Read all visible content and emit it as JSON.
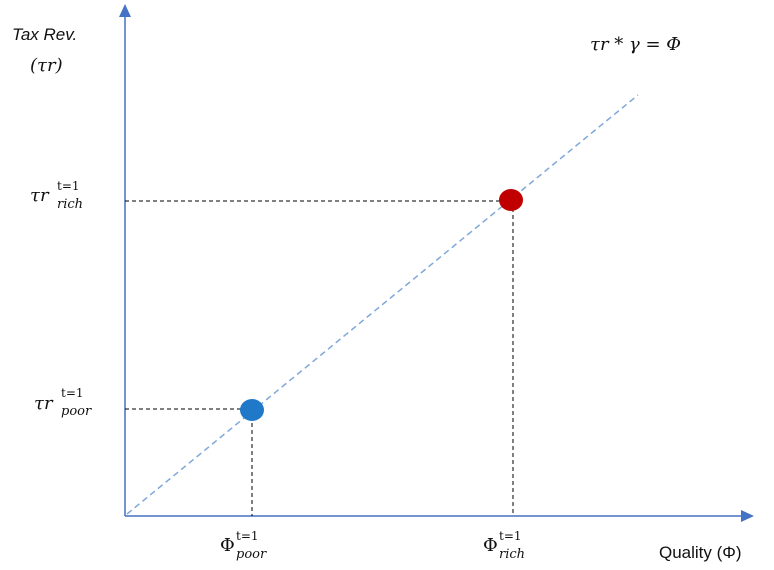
{
  "y_axis": {
    "title_line1": "Tax Rev.",
    "title_line2": "(τr)"
  },
  "x_axis": {
    "title": "Quality (Φ)"
  },
  "equation": "τr * γ = Φ",
  "ticks": {
    "tau_rich": {
      "base": "τr",
      "sup": "t=1",
      "sub": "rich"
    },
    "tau_poor": {
      "base": "τr",
      "sup": "t=1",
      "sub": "poor"
    },
    "phi_poor": {
      "base": "Φ",
      "sup": "t=1",
      "sub": "poor"
    },
    "phi_rich": {
      "base": "Φ",
      "sup": "t=1",
      "sub": "rich"
    }
  },
  "points": {
    "poor": {
      "color": "#1f78c8"
    },
    "rich": {
      "color": "#c00000"
    }
  },
  "colors": {
    "axis": "#4472c4",
    "trend_line": "#7fa7d9",
    "guide_lines": "#000000"
  }
}
